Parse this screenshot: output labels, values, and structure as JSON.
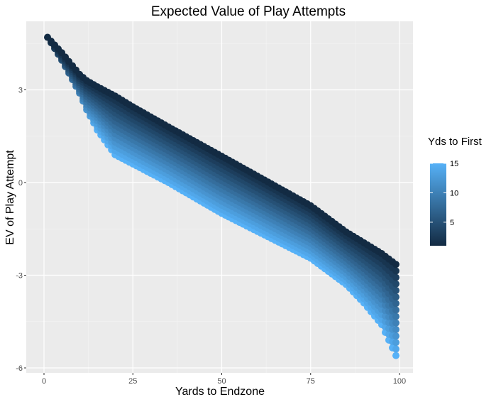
{
  "chart_data": {
    "type": "scatter",
    "title": "Expected Value of Play Attempts",
    "xlabel": "Yards to Endzone",
    "ylabel": "EV of Play Attempt",
    "xlim": [
      -2,
      104
    ],
    "ylim": [
      -6.1,
      5.3
    ],
    "x_ticks": [
      0,
      25,
      50,
      75,
      100
    ],
    "x_tick_labels": [
      "0",
      "25",
      "50",
      "75",
      "100"
    ],
    "y_ticks": [
      3,
      0,
      -3,
      -6
    ],
    "y_tick_labels": [
      "3",
      "0",
      "-3",
      "-6"
    ],
    "grid": true,
    "legend": {
      "title": "Yds to First",
      "position": "right",
      "range": [
        1,
        15
      ],
      "ticks": [
        15,
        10,
        5
      ],
      "tick_labels": [
        "15",
        "10",
        "5"
      ],
      "low_color": "#132B43",
      "high_color": "#56B1F7"
    },
    "series_description_note": "",
    "x_range": [
      1,
      99
    ],
    "yds_to_first_range": [
      1,
      15
    ],
    "knots": {
      "x": [
        1,
        5,
        10,
        12,
        15,
        20,
        25,
        35,
        50,
        75,
        85,
        90,
        95,
        99
      ],
      "ev_d1": [
        4.7,
        4.2,
        3.5,
        3.3,
        3.1,
        2.8,
        2.45,
        1.8,
        0.85,
        -0.75,
        -1.6,
        -1.95,
        -2.3,
        -2.65
      ],
      "ev_d15": [
        4.0,
        3.36,
        2.56,
        2.1,
        1.7,
        0.9,
        0.6,
        0.0,
        -1.0,
        -2.45,
        -3.3,
        -3.9,
        -4.6,
        -5.6
      ]
    }
  }
}
